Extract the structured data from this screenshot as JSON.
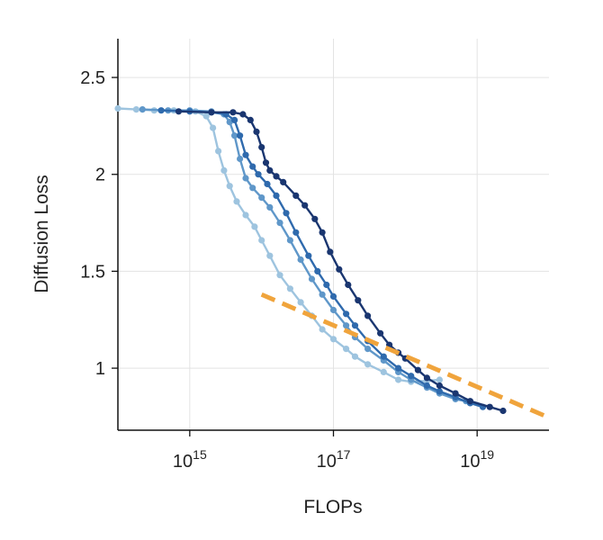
{
  "chart_data": {
    "type": "line",
    "xlabel": "FLOPs",
    "ylabel": "Diffusion Loss",
    "xscale": "log",
    "xlim": [
      100000000000000.0,
      1e+20
    ],
    "ylim": [
      0.68,
      2.7
    ],
    "grid": true,
    "legend": "none",
    "x_ticks": [
      {
        "value": 1000000000000000.0,
        "base": "10",
        "exp": "15"
      },
      {
        "value": 1e+17,
        "base": "10",
        "exp": "17"
      },
      {
        "value": 1e+19,
        "base": "10",
        "exp": "19"
      }
    ],
    "y_ticks": [
      {
        "value": 1.0,
        "label": "1"
      },
      {
        "value": 1.5,
        "label": "1.5"
      },
      {
        "value": 2.0,
        "label": "2"
      },
      {
        "value": 2.5,
        "label": "2.5"
      }
    ],
    "series": [
      {
        "color": "#9ec4df",
        "x": [
          100000000000000.0,
          180000000000000.0,
          320000000000000.0,
          600000000000000.0,
          1200000000000000.0,
          1700000000000000.0,
          2100000000000000.0,
          2500000000000000.0,
          3000000000000000.0,
          3600000000000000.0,
          4500000000000000.0,
          6000000000000000.0,
          8000000000000000.0,
          1e+16,
          1.3e+16,
          1.8e+16,
          2.5e+16,
          3.5e+16,
          5e+16,
          7e+16,
          1e+17,
          1.5e+17,
          2e+17,
          3e+17,
          5e+17,
          8e+17,
          1.2e+18,
          2e+18,
          3e+18
        ],
        "y": [
          2.34,
          2.335,
          2.33,
          2.33,
          2.325,
          2.3,
          2.24,
          2.12,
          2.02,
          1.94,
          1.86,
          1.79,
          1.73,
          1.66,
          1.58,
          1.48,
          1.41,
          1.34,
          1.27,
          1.2,
          1.15,
          1.1,
          1.06,
          1.02,
          0.98,
          0.94,
          0.93,
          0.935,
          0.94
        ]
      },
      {
        "color": "#5f97c9",
        "x": [
          220000000000000.0,
          500000000000000.0,
          1000000000000000.0,
          2000000000000000.0,
          3000000000000000.0,
          3600000000000000.0,
          4200000000000000.0,
          5000000000000000.0,
          6000000000000000.0,
          7500000000000000.0,
          1e+16,
          1.3e+16,
          1.8e+16,
          2.5e+16,
          3.5e+16,
          5e+16,
          7e+16,
          1e+17,
          1.5e+17,
          2e+17,
          3e+17,
          5e+17,
          8e+17,
          1.2e+18,
          2e+18,
          3e+18,
          5e+18,
          7e+18
        ],
        "y": [
          2.335,
          2.33,
          2.33,
          2.325,
          2.31,
          2.27,
          2.2,
          2.08,
          1.98,
          1.93,
          1.88,
          1.83,
          1.75,
          1.66,
          1.56,
          1.46,
          1.38,
          1.3,
          1.22,
          1.16,
          1.1,
          1.04,
          0.98,
          0.94,
          0.9,
          0.87,
          0.84,
          0.83
        ]
      },
      {
        "color": "#2f6aad",
        "x": [
          400000000000000.0,
          1000000000000000.0,
          2000000000000000.0,
          3200000000000000.0,
          4200000000000000.0,
          5000000000000000.0,
          6000000000000000.0,
          7500000000000000.0,
          9000000000000000.0,
          1.2e+16,
          1.6e+16,
          2.2e+16,
          3e+16,
          4.5e+16,
          6e+16,
          8e+16,
          1e+17,
          1.5e+17,
          2e+17,
          3e+17,
          5e+17,
          8e+17,
          1.2e+18,
          2e+18,
          3e+18,
          5e+18,
          8e+18,
          1.2e+19
        ],
        "y": [
          2.33,
          2.325,
          2.32,
          2.31,
          2.28,
          2.2,
          2.1,
          2.04,
          2.0,
          1.95,
          1.89,
          1.8,
          1.7,
          1.58,
          1.5,
          1.43,
          1.37,
          1.28,
          1.22,
          1.14,
          1.06,
          1.0,
          0.96,
          0.91,
          0.88,
          0.85,
          0.82,
          0.8
        ]
      },
      {
        "color": "#1a3670",
        "x": [
          700000000000000.0,
          2000000000000000.0,
          4000000000000000.0,
          5500000000000000.0,
          7000000000000000.0,
          8500000000000000.0,
          1e+16,
          1.15e+16,
          1.3e+16,
          1.6e+16,
          2e+16,
          3e+16,
          4e+16,
          5.5e+16,
          7e+16,
          9e+16,
          1.2e+17,
          1.6e+17,
          2.2e+17,
          3e+17,
          4.5e+17,
          6e+17,
          8e+17,
          1e+18,
          1.5e+18,
          2e+18,
          3e+18,
          5e+18,
          8e+18,
          1.5e+19,
          2.3e+19
        ],
        "y": [
          2.325,
          2.32,
          2.32,
          2.31,
          2.28,
          2.22,
          2.14,
          2.06,
          2.02,
          1.99,
          1.96,
          1.89,
          1.84,
          1.77,
          1.7,
          1.6,
          1.51,
          1.43,
          1.35,
          1.27,
          1.18,
          1.12,
          1.08,
          1.05,
          0.99,
          0.95,
          0.91,
          0.87,
          0.83,
          0.8,
          0.78
        ]
      }
    ],
    "fit_line": {
      "color": "#f0a43c",
      "style": "dashed",
      "x": [
        1e+16,
        1e+20
      ],
      "y": [
        1.38,
        0.745
      ]
    }
  }
}
